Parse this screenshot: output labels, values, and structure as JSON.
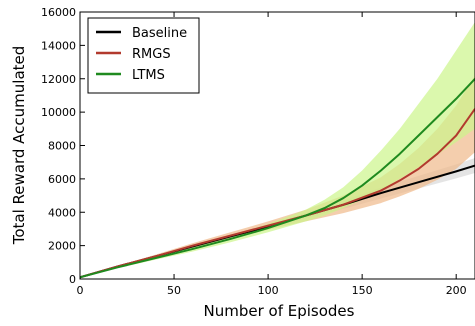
{
  "chart_data": {
    "type": "line",
    "xlabel": "Number of Episodes",
    "ylabel": "Total Reward Accumulated",
    "xlim": [
      0,
      210
    ],
    "ylim": [
      0,
      16000
    ],
    "xticks": [
      0,
      50,
      100,
      150,
      200
    ],
    "yticks": [
      0,
      2000,
      4000,
      6000,
      8000,
      10000,
      12000,
      14000,
      16000
    ],
    "grid": false,
    "legend_position": "top-left",
    "series": [
      {
        "name": "Baseline",
        "color": "#000000",
        "band_color": "#d9d9d9",
        "x": [
          0,
          20,
          40,
          60,
          80,
          100,
          120,
          140,
          160,
          180,
          200,
          210
        ],
        "y": [
          100,
          750,
          1350,
          1950,
          2550,
          3150,
          3800,
          4450,
          5150,
          5800,
          6450,
          6800
        ],
        "lower": [
          80,
          720,
          1300,
          1880,
          2460,
          3040,
          3620,
          4200,
          4820,
          5420,
          6030,
          6350
        ],
        "upper": [
          120,
          780,
          1400,
          2020,
          2640,
          3260,
          3980,
          4700,
          5480,
          6180,
          6870,
          7250
        ]
      },
      {
        "name": "RMGS",
        "color": "#b23a2e",
        "band_color": "#f0b98a",
        "x": [
          0,
          20,
          40,
          60,
          80,
          100,
          120,
          140,
          160,
          170,
          180,
          190,
          200,
          210
        ],
        "y": [
          100,
          750,
          1350,
          2000,
          2600,
          3200,
          3800,
          4450,
          5300,
          5900,
          6600,
          7500,
          8600,
          10200
        ],
        "lower": [
          80,
          700,
          1250,
          1850,
          2400,
          2950,
          3450,
          3950,
          4550,
          4950,
          5400,
          5950,
          6600,
          7600
        ],
        "upper": [
          120,
          800,
          1450,
          2150,
          2800,
          3450,
          4150,
          5000,
          6100,
          6900,
          7850,
          9000,
          10400,
          12200
        ]
      },
      {
        "name": "LTMS",
        "color": "#1f8a1f",
        "band_color": "#ccf58a",
        "x": [
          0,
          20,
          40,
          60,
          80,
          100,
          120,
          130,
          140,
          150,
          160,
          170,
          180,
          190,
          200,
          210
        ],
        "y": [
          100,
          700,
          1250,
          1800,
          2400,
          3050,
          3800,
          4250,
          4850,
          5600,
          6500,
          7500,
          8600,
          9700,
          10800,
          12000
        ],
        "lower": [
          80,
          650,
          1150,
          1650,
          2200,
          2800,
          3450,
          3800,
          4250,
          4750,
          5350,
          6000,
          6700,
          7450,
          8200,
          9000
        ],
        "upper": [
          120,
          750,
          1350,
          1950,
          2600,
          3300,
          4150,
          4750,
          5500,
          6500,
          7700,
          9000,
          10500,
          12000,
          13700,
          15400
        ]
      }
    ]
  }
}
